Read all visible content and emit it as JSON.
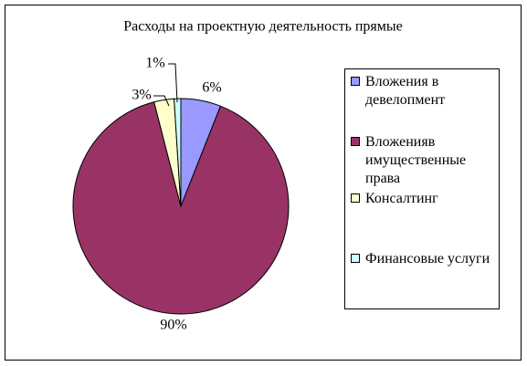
{
  "chart_data": {
    "type": "pie",
    "title": "Расходы на проектную деятельность прямые",
    "categories": [
      "Вложения в девелопмент",
      "Вложенияв имущественные права",
      "Консалтинг",
      "Финансовые услуги"
    ],
    "values": [
      6,
      90,
      3,
      1
    ],
    "value_labels": [
      "6%",
      "90%",
      "3%",
      "1%"
    ],
    "colors": [
      "#9999ff",
      "#993366",
      "#ffffcc",
      "#ccffff"
    ]
  }
}
